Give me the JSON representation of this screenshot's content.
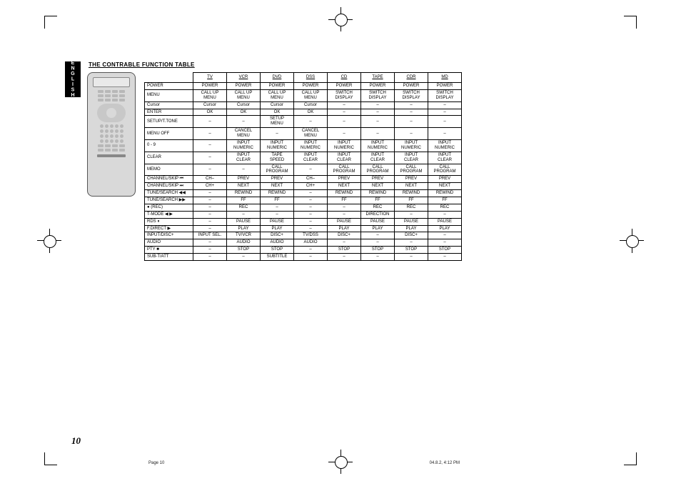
{
  "language_tab": "ENGLISH",
  "title": "THE CONTRABLE FUNCTION TABLE",
  "page_number": "10",
  "footer_left": "Page 10",
  "footer_right": "04.8.2, 4:12 PM",
  "columns": [
    "TV",
    "VCR",
    "DVD",
    "DSS",
    "CD",
    "TAPE",
    "CDR",
    "MD"
  ],
  "rows": [
    {
      "label": "POWER",
      "cells": [
        "POWER",
        "POWER",
        "POWER",
        "POWER",
        "POWER",
        "POWER",
        "POWER",
        "POWER"
      ]
    },
    {
      "label": "MENU",
      "cells": [
        "CALL UP\nMENU",
        "CALL UP\nMENU",
        "CALL UP\nMENU",
        "CALL UP\nMENU",
        "SWITCH\nDISPLAY",
        "SWITCH\nDISPLAY",
        "SWITCH\nDISPLAY",
        "SWITCH\nDISPLAY"
      ]
    },
    {
      "label": "Cursor",
      "cells": [
        "Cursor",
        "Cursor",
        "Cursor",
        "Cursor",
        "–",
        "–",
        "–",
        "–"
      ]
    },
    {
      "label": "ENTER",
      "cells": [
        "OK",
        "OK",
        "OK",
        "OK",
        "–",
        "–",
        "–",
        "–"
      ]
    },
    {
      "label": "SETUP/T.TONE",
      "cells": [
        "–",
        "–",
        "SETUP\nMENU",
        "–",
        "–",
        "–",
        "–",
        "–"
      ]
    },
    {
      "label": "MENU OFF",
      "cells": [
        "–",
        "CANCEL\nMENU",
        "–",
        "CANCEL\nMENU",
        "–",
        "–",
        "–",
        "–"
      ]
    },
    {
      "label": "0 - 9",
      "cells": [
        "–",
        "INPUT\nNUMERIC",
        "INPUT\nNUMERIC",
        "INPUT\nNUMERIC",
        "INPUT\nNUMERIC",
        "INPUT\nNUMERIC",
        "INPUT\nNUMERIC",
        "INPUT\nNUMERIC"
      ]
    },
    {
      "label": "CLEAR",
      "cells": [
        "–",
        "INPUT\nCLEAR",
        "TAPE\nSPEED",
        "INPUT\nCLEAR",
        "INPUT\nCLEAR",
        "INPUT\nCLEAR",
        "INPUT\nCLEAR",
        "INPUT\nCLEAR"
      ]
    },
    {
      "label": "MEMO",
      "cells": [
        "–",
        "–",
        "CALL\nPROGRAM",
        "–",
        "CALL\nPROGRAM",
        "CALL\nPROGRAM",
        "CALL\nPROGRAM",
        "CALL\nPROGRAM"
      ]
    },
    {
      "label": "CHANNEL/SKIP ⏮",
      "cells": [
        "CH–",
        "PREV",
        "PREV",
        "CH–",
        "PREV",
        "PREV",
        "PREV",
        "PREV"
      ]
    },
    {
      "label": "CHANNEL/SKIP ⏭",
      "cells": [
        "CH+",
        "NEXT",
        "NEXT",
        "CH+",
        "NEXT",
        "NEXT",
        "NEXT",
        "NEXT"
      ]
    },
    {
      "label": "TUNE/SEARCH ◀◀",
      "cells": [
        "–",
        "REWIND",
        "REWIND",
        "–",
        "REWIND",
        "REWIND",
        "REWIND",
        "REWIND"
      ]
    },
    {
      "label": "TUNE/SEARCH ▶▶",
      "cells": [
        "–",
        "FF",
        "FF",
        "–",
        "FF",
        "FF",
        "FF",
        "FF"
      ]
    },
    {
      "label": "● (REC)",
      "cells": [
        "–",
        "REC",
        "–",
        "–",
        "–",
        "REC",
        "REC",
        "REC"
      ]
    },
    {
      "label": "T-MODE ◀ ▶",
      "cells": [
        "–",
        "–",
        "–",
        "–",
        "–",
        "DIRECTION",
        "–",
        "–"
      ]
    },
    {
      "label": "RDS ⏸",
      "cells": [
        "–",
        "PAUSE",
        "PAUSE",
        "–",
        "PAUSE",
        "PAUSE",
        "PAUSE",
        "PAUSE"
      ]
    },
    {
      "label": "F.DIRECT ▶",
      "cells": [
        "–",
        "PLAY",
        "PLAY",
        "–",
        "PLAY",
        "PLAY",
        "PLAY",
        "PLAY"
      ]
    },
    {
      "label": "INPUT/DISC+",
      "cells": [
        "INPUT SEL.",
        "TV/VCR",
        "DISC+",
        "TV/DSS",
        "DISC+",
        "–",
        "DISC+",
        "–"
      ]
    },
    {
      "label": "AUDIO",
      "cells": [
        "–",
        "AUDIO",
        "AUDIO",
        "AUDIO",
        "–",
        "–",
        "–",
        "–"
      ]
    },
    {
      "label": "PTY ■",
      "cells": [
        "–",
        "STOP",
        "STOP",
        "–",
        "STOP",
        "STOP",
        "STOP",
        "STOP"
      ]
    },
    {
      "label": "SUB-T/ATT",
      "cells": [
        "–",
        "–",
        "SUBTITLE",
        "–",
        "–",
        "–",
        "–",
        "–"
      ]
    }
  ]
}
